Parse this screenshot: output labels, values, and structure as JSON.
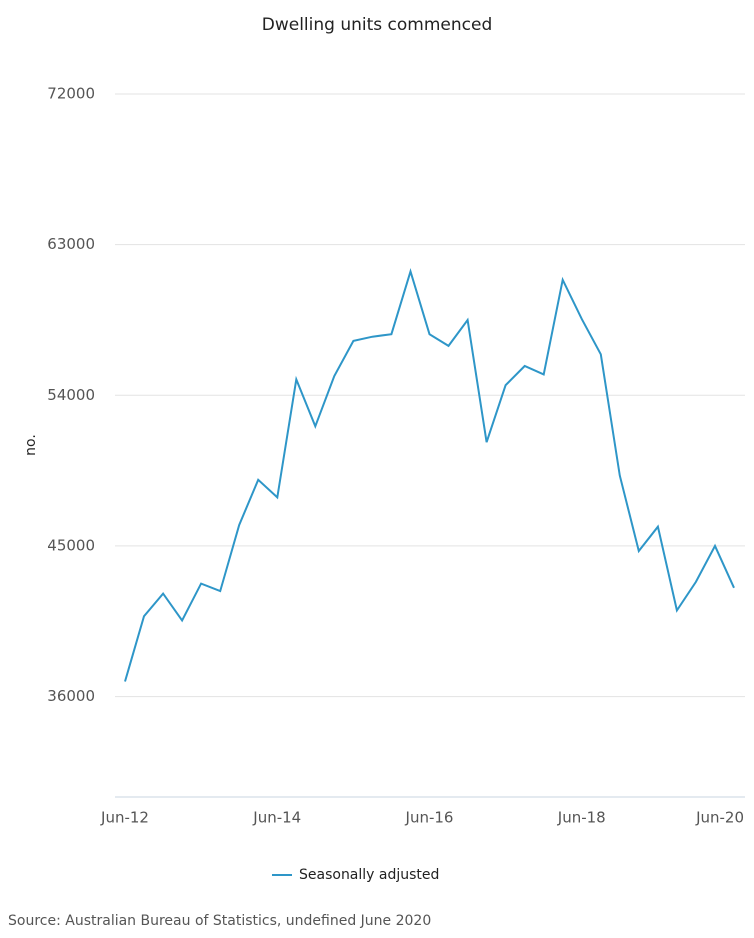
{
  "chart_data": {
    "type": "line",
    "title": "Dwelling units commenced",
    "y_label": "no.",
    "categories": [
      "Jun-12",
      null,
      null,
      null,
      null,
      null,
      null,
      null,
      "Jun-14",
      null,
      null,
      null,
      null,
      null,
      null,
      null,
      "Jun-16",
      null,
      null,
      null,
      null,
      null,
      null,
      null,
      "Jun-18",
      null,
      null,
      null,
      null,
      null,
      null,
      null,
      "Jun-20"
    ],
    "series": [
      {
        "name": "Seasonally adjusted",
        "color": "#2e96c8",
        "values": [
          36900,
          40800,
          42150,
          40550,
          42750,
          42300,
          46250,
          48950,
          47900,
          54950,
          52150,
          55150,
          57250,
          57500,
          57650,
          61400,
          57650,
          56950,
          58500,
          51200,
          54600,
          55750,
          55250,
          60900,
          58550,
          56450,
          49200,
          44700,
          46150,
          41150,
          42850,
          45000,
          42500
        ]
      }
    ],
    "ylim": [
      30000,
      72000
    ],
    "yticks": [
      36000,
      45000,
      54000,
      63000,
      72000
    ],
    "grid": true,
    "source": "Source: Australian Bureau of Statistics, undefined June 2020"
  }
}
